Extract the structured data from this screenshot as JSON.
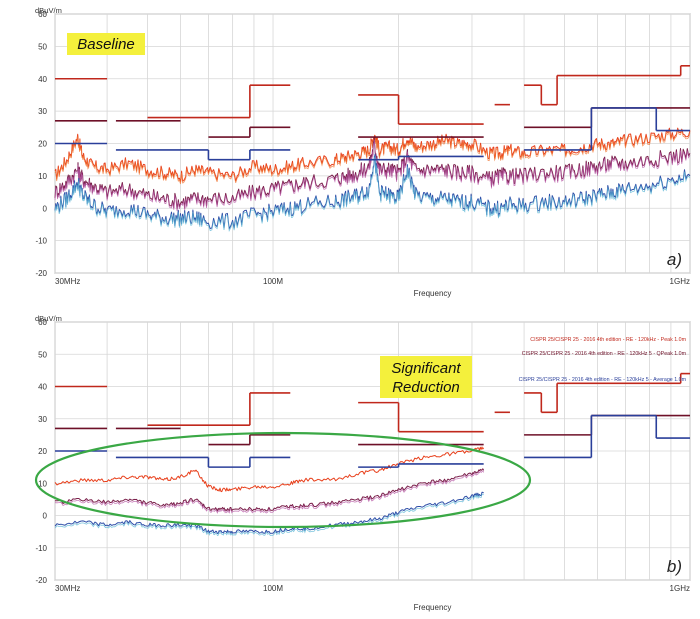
{
  "chart_data": [
    {
      "type": "line",
      "panel_label": "a)",
      "annotation": "Baseline",
      "ylabel": "dBµV/m",
      "xlabel": "Frequency",
      "x_scale": "log",
      "xlim_mhz": [
        30,
        1000
      ],
      "x_ticks": [
        {
          "value": 30,
          "label": "30MHz"
        },
        {
          "value": 100,
          "label": "100M"
        },
        {
          "value": 1000,
          "label": "1GHz"
        }
      ],
      "ylim": [
        -20,
        60
      ],
      "y_ticks": [
        -20,
        -10,
        0,
        10,
        20,
        30,
        40,
        50,
        60
      ],
      "grid": true,
      "legend": [],
      "colors": {
        "peak": "#e8401c",
        "qpeak": "#7a1f4a",
        "average": "#2f4fa8",
        "limit_peak": "#c0281c",
        "limit_qpeak": "#6e1028",
        "limit_avg": "#2a3f9a"
      },
      "series": [
        {
          "key": "peak",
          "x_mhz": [
            30,
            32,
            34,
            35,
            37,
            40,
            45,
            50,
            55,
            60,
            65,
            70,
            80,
            90,
            100,
            110,
            120,
            140,
            150,
            160,
            170,
            175,
            180,
            190,
            200,
            210,
            220,
            240,
            260,
            280,
            300,
            330,
            350,
            370,
            400,
            450,
            500,
            550,
            600,
            650,
            700,
            800,
            900,
            1000
          ],
          "values": [
            10,
            15,
            22,
            16,
            13,
            12,
            14,
            12,
            11,
            10,
            12,
            11,
            10,
            13,
            12,
            13,
            14,
            15,
            16,
            17,
            18,
            23,
            18,
            19,
            18,
            22,
            19,
            20,
            21,
            20,
            20,
            17,
            17,
            18,
            17,
            18,
            18,
            19,
            20,
            20,
            21,
            22,
            23,
            24
          ]
        },
        {
          "key": "qpeak",
          "x_mhz": [
            30,
            32,
            34,
            35,
            37,
            40,
            45,
            50,
            55,
            60,
            65,
            70,
            80,
            90,
            100,
            110,
            120,
            140,
            150,
            160,
            170,
            175,
            180,
            190,
            200,
            210,
            220,
            240,
            260,
            280,
            300,
            330,
            350,
            370,
            400,
            450,
            500,
            550,
            600,
            650,
            700,
            800,
            900,
            1000
          ],
          "values": [
            5,
            8,
            12,
            9,
            7,
            5,
            6,
            4,
            3,
            2,
            3,
            3,
            3,
            5,
            6,
            7,
            8,
            9,
            10,
            11,
            13,
            20,
            12,
            12,
            11,
            16,
            12,
            12,
            12,
            11,
            11,
            9,
            10,
            10,
            10,
            11,
            11,
            12,
            13,
            14,
            14,
            15,
            16,
            17
          ]
        },
        {
          "key": "average",
          "x_mhz": [
            30,
            32,
            34,
            35,
            37,
            40,
            45,
            50,
            55,
            60,
            65,
            70,
            80,
            90,
            100,
            110,
            120,
            140,
            150,
            160,
            170,
            175,
            180,
            190,
            200,
            210,
            220,
            240,
            260,
            280,
            300,
            330,
            350,
            370,
            400,
            450,
            500,
            550,
            600,
            650,
            700,
            800,
            900,
            1000
          ],
          "values": [
            0,
            3,
            8,
            4,
            1,
            -1,
            0,
            -2,
            -3,
            -3,
            -3,
            -4,
            -4,
            -2,
            -1,
            0,
            1,
            2,
            3,
            4,
            6,
            16,
            5,
            4,
            3,
            12,
            4,
            3,
            3,
            2,
            2,
            0,
            0,
            1,
            1,
            2,
            2,
            3,
            4,
            5,
            6,
            7,
            9,
            10
          ]
        },
        {
          "key": "limit_peak",
          "segments": [
            [
              30,
              40,
              40
            ],
            [
              50,
              88,
              28
            ],
            [
              88,
              110,
              38
            ],
            [
              160,
              200,
              35
            ],
            [
              200,
              320,
              26
            ],
            [
              340,
              370,
              32
            ],
            [
              400,
              440,
              38
            ],
            [
              440,
              480,
              32
            ],
            [
              480,
              950,
              41
            ],
            [
              950,
              1000,
              44
            ]
          ]
        },
        {
          "key": "limit_qpeak",
          "segments": [
            [
              30,
              40,
              27
            ],
            [
              42,
              60,
              27
            ],
            [
              70,
              88,
              22
            ],
            [
              88,
              110,
              25
            ],
            [
              160,
              200,
              22
            ],
            [
              200,
              320,
              22
            ],
            [
              400,
              580,
              25
            ],
            [
              580,
              1000,
              31
            ]
          ]
        },
        {
          "key": "limit_avg",
          "segments": [
            [
              30,
              40,
              20
            ],
            [
              42,
              70,
              18
            ],
            [
              70,
              88,
              15
            ],
            [
              88,
              110,
              18
            ],
            [
              160,
              200,
              15
            ],
            [
              200,
              320,
              16
            ],
            [
              400,
              580,
              18
            ],
            [
              580,
              830,
              31
            ],
            [
              830,
              1000,
              24
            ]
          ]
        }
      ]
    },
    {
      "type": "line",
      "panel_label": "b)",
      "annotation": "Significant\nReduction",
      "ylabel": "dBµV/m",
      "xlabel": "Frequency",
      "x_scale": "log",
      "xlim_mhz": [
        30,
        1000
      ],
      "x_ticks": [
        {
          "value": 30,
          "label": "30MHz"
        },
        {
          "value": 100,
          "label": "100M"
        },
        {
          "value": 1000,
          "label": "1GHz"
        }
      ],
      "ylim": [
        -20,
        60
      ],
      "y_ticks": [
        -20,
        -10,
        0,
        10,
        20,
        30,
        40,
        50,
        60
      ],
      "grid": true,
      "legend": [
        {
          "key": "limit_peak",
          "label": "CISPR 25/CISPR 25 - 2016 4th edition - RE - 120kHz - Peak 1.0m"
        },
        {
          "key": "limit_qpeak",
          "label": "CISPR 25/CISPR 25 - 2016 4th edition - RE - 120kHz 5 - QPeak 1.0m"
        },
        {
          "key": "limit_avg",
          "label": "CISPR 25/CISPR 25 - 2016 4th edition - RE - 120kHz 5 - Average 1.0m"
        }
      ],
      "colors": {
        "peak": "#e8401c",
        "qpeak": "#7a1f4a",
        "average": "#2f4fa8",
        "limit_peak": "#c0281c",
        "limit_qpeak": "#6e1028",
        "limit_avg": "#2a3f9a",
        "ellipse": "#3aa845"
      },
      "series": [
        {
          "key": "peak",
          "x_mhz": [
            30,
            35,
            40,
            45,
            50,
            55,
            60,
            65,
            70,
            75,
            80,
            90,
            100,
            110,
            120,
            140,
            160,
            180,
            200,
            230,
            260,
            300,
            320
          ],
          "values": [
            10,
            11,
            11,
            12,
            12,
            11,
            12,
            14,
            9,
            8,
            8,
            9,
            9,
            10,
            11,
            11,
            13,
            14,
            16,
            18,
            19,
            20,
            21
          ]
        },
        {
          "key": "qpeak",
          "x_mhz": [
            30,
            35,
            40,
            45,
            50,
            55,
            60,
            65,
            70,
            75,
            80,
            90,
            100,
            110,
            120,
            140,
            160,
            180,
            200,
            230,
            260,
            300,
            320
          ],
          "values": [
            4,
            5,
            4,
            5,
            4,
            3,
            4,
            5,
            2,
            2,
            2,
            2,
            2,
            3,
            3,
            4,
            5,
            6,
            8,
            10,
            11,
            13,
            14
          ]
        },
        {
          "key": "average",
          "x_mhz": [
            30,
            35,
            40,
            45,
            50,
            55,
            60,
            65,
            70,
            75,
            80,
            90,
            100,
            110,
            120,
            140,
            160,
            180,
            200,
            230,
            260,
            300,
            320
          ],
          "values": [
            -3,
            -2,
            -3,
            -2,
            -3,
            -3,
            -3,
            -3,
            -5,
            -5,
            -5,
            -5,
            -5,
            -4,
            -4,
            -3,
            -2,
            -1,
            1,
            3,
            4,
            6,
            7
          ]
        },
        {
          "key": "limit_peak",
          "segments": [
            [
              30,
              40,
              40
            ],
            [
              50,
              88,
              28
            ],
            [
              88,
              110,
              38
            ],
            [
              160,
              200,
              35
            ],
            [
              200,
              320,
              26
            ],
            [
              340,
              370,
              32
            ],
            [
              400,
              440,
              38
            ],
            [
              440,
              480,
              32
            ],
            [
              480,
              950,
              41
            ],
            [
              950,
              1000,
              44
            ]
          ]
        },
        {
          "key": "limit_qpeak",
          "segments": [
            [
              30,
              40,
              27
            ],
            [
              42,
              60,
              27
            ],
            [
              70,
              88,
              22
            ],
            [
              88,
              110,
              25
            ],
            [
              160,
              200,
              22
            ],
            [
              200,
              320,
              22
            ],
            [
              400,
              580,
              25
            ],
            [
              580,
              1000,
              31
            ]
          ]
        },
        {
          "key": "limit_avg",
          "segments": [
            [
              30,
              40,
              20
            ],
            [
              42,
              70,
              18
            ],
            [
              70,
              88,
              15
            ],
            [
              88,
              110,
              18
            ],
            [
              160,
              200,
              15
            ],
            [
              200,
              320,
              16
            ],
            [
              400,
              580,
              18
            ],
            [
              580,
              830,
              31
            ],
            [
              830,
              1000,
              24
            ]
          ]
        }
      ]
    }
  ]
}
